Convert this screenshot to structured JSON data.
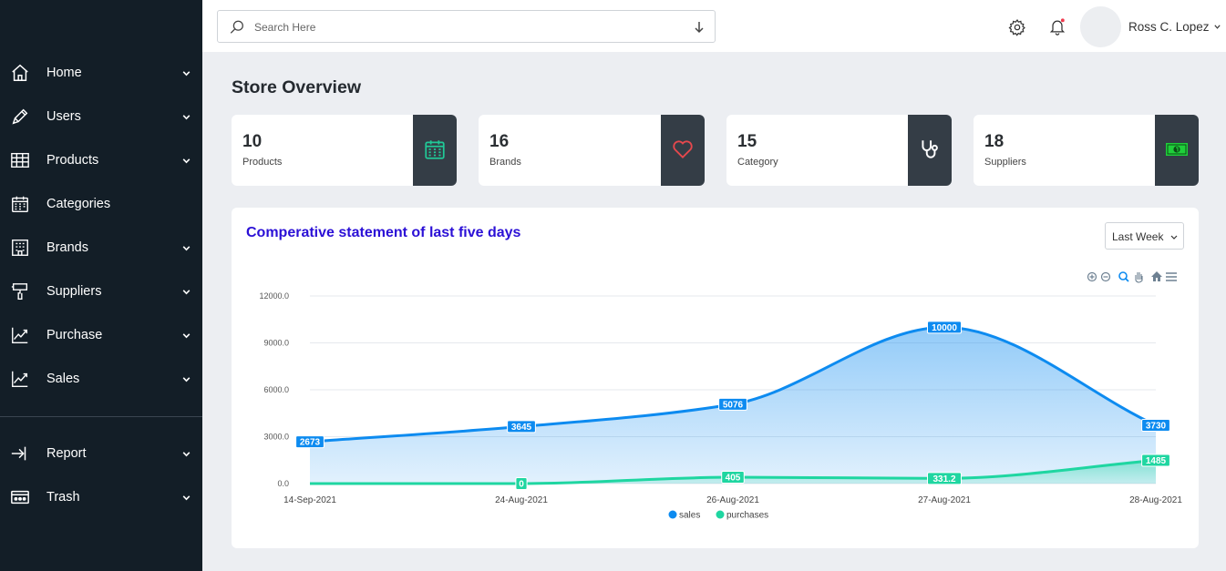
{
  "sidebar": {
    "items": [
      {
        "label": "Home",
        "icon": "home-icon",
        "chevron": true
      },
      {
        "label": "Users",
        "icon": "pencil-icon",
        "chevron": true
      },
      {
        "label": "Products",
        "icon": "table-icon",
        "chevron": true
      },
      {
        "label": "Categories",
        "icon": "calendar-icon",
        "chevron": false
      },
      {
        "label": "Brands",
        "icon": "building-icon",
        "chevron": true
      },
      {
        "label": "Suppliers",
        "icon": "paint-roller-icon",
        "chevron": true
      },
      {
        "label": "Purchase",
        "icon": "trend-up-icon",
        "chevron": true
      },
      {
        "label": "Sales",
        "icon": "trend-up-icon",
        "chevron": true
      },
      {
        "label": "Report",
        "icon": "sign-in-arrow-icon",
        "chevron": true
      },
      {
        "label": "Trash",
        "icon": "dots-box-icon",
        "chevron": true
      }
    ]
  },
  "header": {
    "search_placeholder": "Search Here",
    "user_name": "Ross C. Lopez"
  },
  "page": {
    "title": "Store Overview"
  },
  "stats": [
    {
      "value": "10",
      "label": "Products",
      "icon": "calendar-icon",
      "icon_color": "#20c997"
    },
    {
      "value": "16",
      "label": "Brands",
      "icon": "heart-icon",
      "icon_color": "#e5484d"
    },
    {
      "value": "15",
      "label": "Category",
      "icon": "stethoscope-icon",
      "icon_color": "#ffffff"
    },
    {
      "value": "18",
      "label": "Suppliers",
      "icon": "money-icon",
      "icon_color": "#1fcf3a"
    }
  ],
  "chart_panel": {
    "title": "Comperative statement of last five days",
    "range_selected": "Last Week"
  },
  "chart_data": {
    "type": "area",
    "categories": [
      "14-Sep-2021",
      "24-Aug-2021",
      "26-Aug-2021",
      "27-Aug-2021",
      "28-Aug-2021"
    ],
    "series": [
      {
        "name": "sales",
        "values": [
          2673,
          3645,
          5076,
          10000,
          3730
        ],
        "labels": [
          "2673",
          "3645",
          "5076",
          "10000",
          "3730"
        ],
        "color": "#0d8bf0"
      },
      {
        "name": "purchases",
        "values": [
          0,
          0,
          405,
          331.2,
          1485
        ],
        "labels": [
          "",
          "0",
          "405",
          "331.2",
          "1485"
        ],
        "color": "#1fd6a1"
      }
    ],
    "yticks": [
      "0.0",
      "3000.0",
      "6000.0",
      "9000.0",
      "12000.0"
    ],
    "ylim": [
      0,
      12000
    ],
    "grid": true,
    "legend": "bottom-center"
  },
  "colors": {
    "sidebar_bg": "#131e27",
    "accent_blue": "#0d8bf0",
    "accent_green": "#1fd6a1",
    "title_blue": "#2b10d6"
  }
}
